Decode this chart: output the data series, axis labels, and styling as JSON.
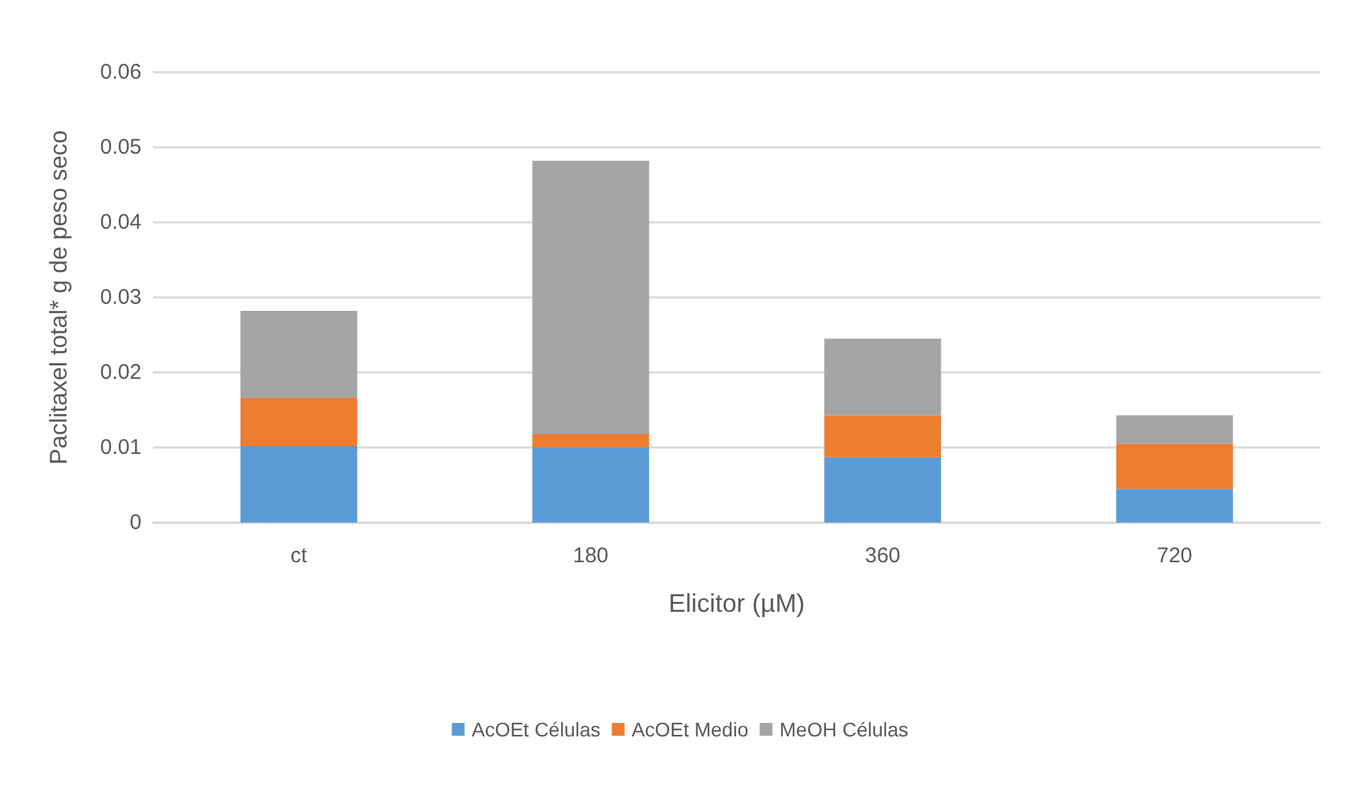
{
  "chart_data": {
    "type": "bar",
    "stacked": true,
    "xlabel": "Elicitor (µM)",
    "ylabel": "Paclitaxel total* g de peso seco",
    "categories": [
      "ct",
      "180",
      "360",
      "720"
    ],
    "series": [
      {
        "name": "AcOEt Células",
        "color": "#5b9bd5",
        "values": [
          0.0102,
          0.01,
          0.0087,
          0.0045
        ]
      },
      {
        "name": "AcOEt Medio",
        "color": "#ed7d31",
        "values": [
          0.0064,
          0.0018,
          0.0056,
          0.006
        ]
      },
      {
        "name": "MeOH Células",
        "color": "#a5a5a5",
        "values": [
          0.0116,
          0.0364,
          0.0102,
          0.0038
        ]
      }
    ],
    "ylim": [
      0,
      0.06
    ],
    "yticks": [
      0,
      0.01,
      0.02,
      0.03,
      0.04,
      0.05,
      0.06
    ],
    "grid": "y",
    "legend": "bottom"
  }
}
